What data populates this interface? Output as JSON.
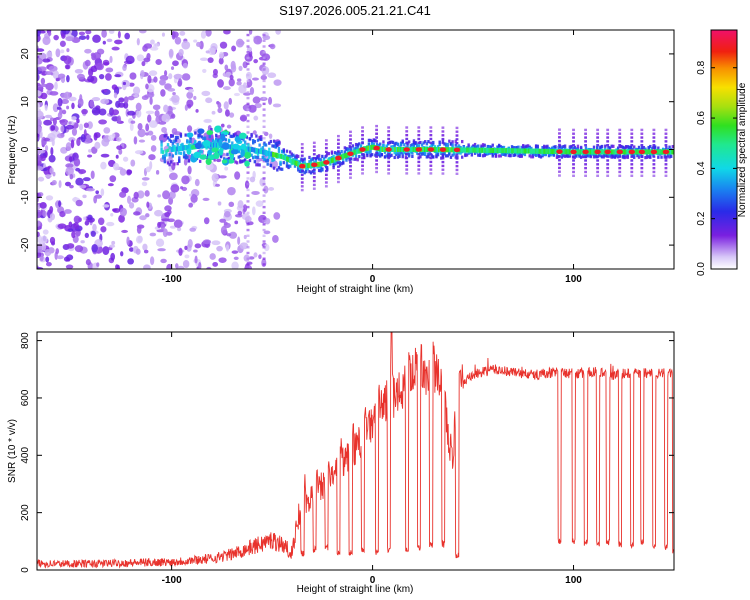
{
  "chart_data": [
    {
      "type": "heatmap",
      "title": "S197.2026.005.21.21.C41",
      "xlabel": "Height of straight line (km)",
      "ylabel": "Frequency (Hz)",
      "xlim": [
        -167,
        150
      ],
      "ylim": [
        -25,
        25
      ],
      "xticks": [
        -100,
        0,
        100
      ],
      "yticks": [
        -20,
        -10,
        0,
        10,
        20
      ],
      "colorbar": {
        "label": "Normalized spectral amplitude",
        "range": [
          0,
          0.95
        ],
        "ticks": [
          0.0,
          0.2,
          0.4,
          0.6,
          0.8
        ]
      },
      "ridge": {
        "x": [
          -100,
          -80,
          -60,
          -45,
          -35,
          -25,
          -15,
          -5,
          0,
          5,
          15,
          30,
          60,
          100,
          150
        ],
        "freq": [
          0,
          1,
          0,
          -1.5,
          -3.5,
          -3,
          -1.5,
          0,
          0.5,
          0,
          0,
          0,
          -0.2,
          -0.5,
          -0.5
        ]
      }
    },
    {
      "type": "line",
      "title": "",
      "xlabel": "Height of straight line (km)",
      "ylabel": "SNR (10 * v/v)",
      "xlim": [
        -167,
        150
      ],
      "ylim": [
        0,
        830
      ],
      "xticks": [
        -100,
        0,
        100
      ],
      "yticks": [
        0,
        200,
        400,
        600,
        800
      ],
      "series": [
        {
          "name": "SNR",
          "color": "#e8322c",
          "x": [
            -167,
            -140,
            -120,
            -100,
            -80,
            -70,
            -60,
            -50,
            -45,
            -40,
            -38,
            -36,
            -34,
            -32,
            -30,
            -28,
            -26,
            -24,
            -22,
            -20,
            -18,
            -16,
            -14,
            -12,
            -10,
            -8,
            -6,
            -4,
            -2,
            0,
            2,
            4,
            6,
            8,
            9,
            10,
            11,
            12,
            14,
            16,
            18,
            20,
            22,
            24,
            26,
            28,
            30,
            32,
            34,
            36,
            38,
            40,
            42,
            45,
            50,
            60,
            70,
            80,
            90,
            100,
            110,
            120,
            130,
            140,
            150
          ],
          "values": [
            22,
            22,
            25,
            28,
            40,
            55,
            80,
            105,
            90,
            60,
            150,
            190,
            240,
            230,
            260,
            270,
            290,
            300,
            310,
            330,
            345,
            360,
            380,
            395,
            410,
            430,
            450,
            470,
            490,
            510,
            540,
            560,
            580,
            600,
            650,
            620,
            590,
            610,
            620,
            640,
            660,
            690,
            700,
            690,
            680,
            690,
            700,
            680,
            650,
            560,
            450,
            390,
            630,
            650,
            680,
            700,
            690,
            680,
            690,
            685,
            690,
            680,
            690,
            685,
            690
          ],
          "dips": [
            {
              "x": -35,
              "value": 60
            },
            {
              "x": -29,
              "value": 70
            },
            {
              "x": -23,
              "value": 80
            },
            {
              "x": -17,
              "value": 60
            },
            {
              "x": -11,
              "value": 60
            },
            {
              "x": -5,
              "value": 70
            },
            {
              "x": 2,
              "value": 60
            },
            {
              "x": 8,
              "value": 70
            },
            {
              "x": 17,
              "value": 75
            },
            {
              "x": 23,
              "value": 80
            },
            {
              "x": 29,
              "value": 85
            },
            {
              "x": 35,
              "value": 90
            },
            {
              "x": 42,
              "value": 50
            },
            {
              "x": 93,
              "value": 100
            },
            {
              "x": 100,
              "value": 100
            },
            {
              "x": 106,
              "value": 95
            },
            {
              "x": 112,
              "value": 90
            },
            {
              "x": 117,
              "value": 95
            },
            {
              "x": 123,
              "value": 90
            },
            {
              "x": 129,
              "value": 90
            },
            {
              "x": 134,
              "value": 95
            },
            {
              "x": 140,
              "value": 80
            },
            {
              "x": 146,
              "value": 80
            },
            {
              "x": 150,
              "value": 60
            }
          ]
        }
      ]
    }
  ]
}
